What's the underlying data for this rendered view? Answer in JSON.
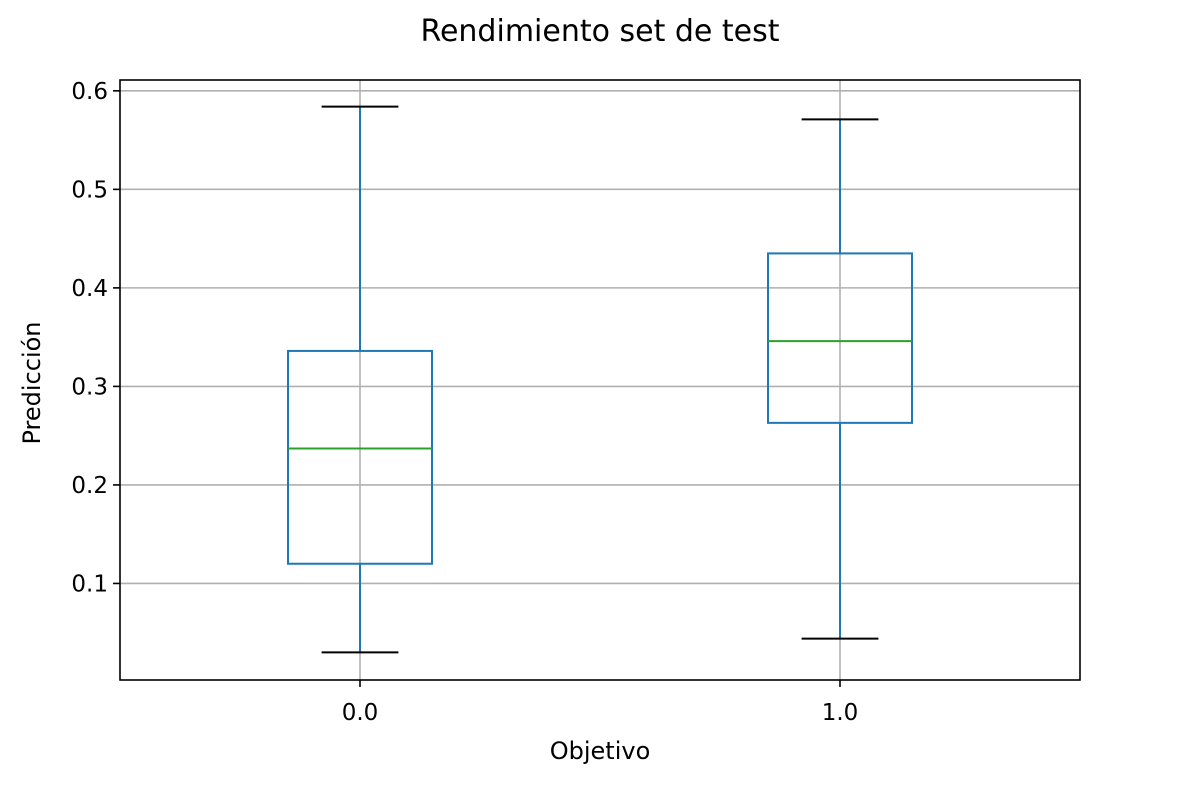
{
  "chart_data": {
    "type": "boxplot",
    "title": "Rendimiento set de test",
    "xlabel": "Objetivo",
    "ylabel": "Predicción",
    "categories": [
      "0.0",
      "1.0"
    ],
    "boxes": [
      {
        "category": "0.0",
        "whisker_low": 0.03,
        "q1": 0.12,
        "median": 0.237,
        "q3": 0.336,
        "whisker_high": 0.584
      },
      {
        "category": "1.0",
        "whisker_low": 0.044,
        "q1": 0.263,
        "median": 0.346,
        "q3": 0.435,
        "whisker_high": 0.571
      }
    ],
    "yticks": [
      "0.1",
      "0.2",
      "0.3",
      "0.4",
      "0.5",
      "0.6"
    ],
    "ylim": [
      0.002,
      0.611
    ],
    "grid": true,
    "colors": {
      "box": "#1f77b4",
      "median": "#2ca02c",
      "caps": "#000000",
      "grid": "#b0b0b0"
    }
  }
}
